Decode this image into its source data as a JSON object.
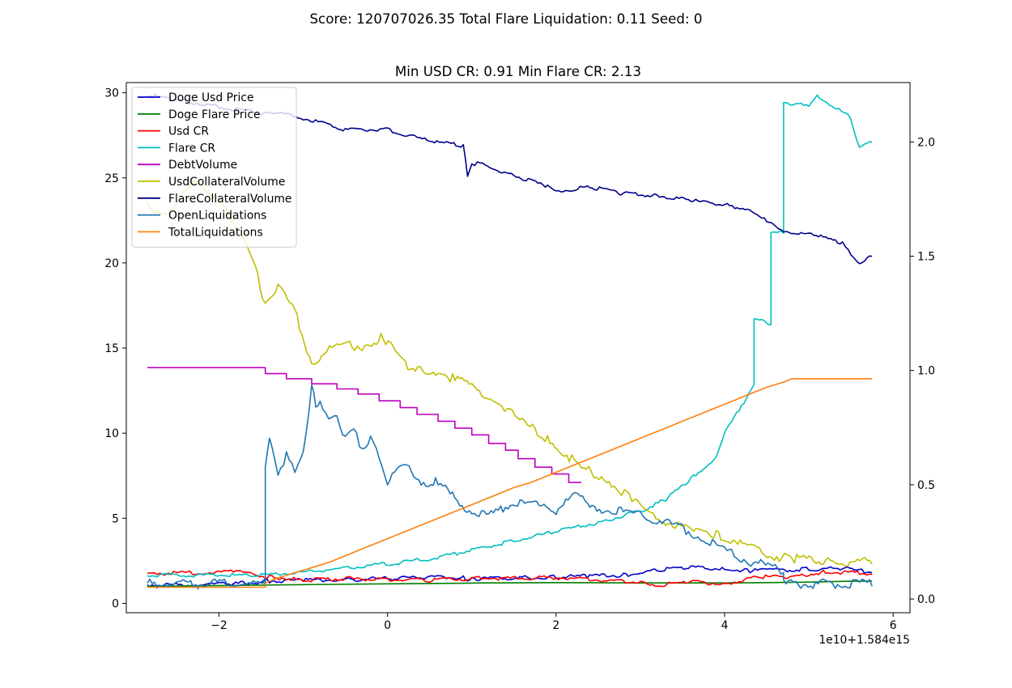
{
  "figure": {
    "suptitle": "Score: 120707026.35 Total Flare Liquidation: 0.11 Seed: 0"
  },
  "chart_data": {
    "type": "line",
    "title": "Min USD CR: 0.91 Min Flare CR: 2.13",
    "xlabel": "",
    "ylabel": "",
    "x_offset_text": "1e10+1.584e15",
    "xlim": [
      -3.1,
      6.2
    ],
    "ylim_left": [
      -0.55,
      30.6
    ],
    "ylim_right": [
      -0.06,
      2.26
    ],
    "x_ticks": [
      -2,
      0,
      2,
      4,
      6
    ],
    "x_tick_labels": [
      "−2",
      "0",
      "2",
      "4",
      "6"
    ],
    "y_ticks_left": [
      0,
      5,
      10,
      15,
      20,
      25,
      30
    ],
    "y_tick_labels_left": [
      "0",
      "5",
      "10",
      "15",
      "20",
      "25",
      "30"
    ],
    "y_ticks_right": [
      0.0,
      0.5,
      1.0,
      1.5,
      2.0
    ],
    "y_tick_labels_right": [
      "0.0",
      "0.5",
      "1.0",
      "1.5",
      "2.0"
    ],
    "grid": false,
    "legend_position": "top-left",
    "series": [
      {
        "name": "Doge Usd Price",
        "color": "#0000cc",
        "axis": "left",
        "x": [
          -2.85,
          -2.2,
          -1.8,
          -1.4,
          -1.0,
          -0.5,
          0.0,
          0.5,
          0.9,
          0.95,
          1.0,
          1.05,
          1.1,
          1.6,
          2.0,
          2.4,
          2.8,
          3.2,
          3.6,
          4.0,
          4.3,
          4.6,
          5.0,
          5.4,
          5.6,
          5.75
        ],
        "values": [
          1.03,
          1.05,
          1.1,
          1.25,
          1.3,
          1.35,
          1.4,
          1.5,
          1.45,
          1.35,
          1.4,
          1.38,
          1.4,
          1.45,
          1.5,
          1.55,
          1.6,
          1.9,
          2.05,
          2.0,
          1.85,
          1.9,
          1.95,
          2.0,
          1.85,
          1.8
        ]
      },
      {
        "name": "Doge Flare Price",
        "color": "#008000",
        "axis": "left",
        "x": [
          -2.85,
          -2.0,
          -1.0,
          0.0,
          0.9,
          1.1,
          2.0,
          3.0,
          4.0,
          4.5,
          5.0,
          5.5,
          5.75
        ],
        "values": [
          1.0,
          1.05,
          1.1,
          1.15,
          1.18,
          1.2,
          1.22,
          1.2,
          1.2,
          1.22,
          1.25,
          1.3,
          1.3
        ]
      },
      {
        "name": "Usd CR",
        "color": "#ff0000",
        "axis": "left",
        "x": [
          -2.85,
          -2.2,
          -1.8,
          -1.4,
          -1.0,
          -0.5,
          0.0,
          0.5,
          1.0,
          2.0,
          2.6,
          3.0,
          3.2,
          3.6,
          4.0,
          4.4,
          4.8,
          5.2,
          5.75
        ],
        "values": [
          1.7,
          1.75,
          1.8,
          1.5,
          1.3,
          1.4,
          1.35,
          1.3,
          1.4,
          1.45,
          1.3,
          1.2,
          1.0,
          1.2,
          1.1,
          1.5,
          1.5,
          1.8,
          1.7
        ]
      },
      {
        "name": "Flare CR",
        "color": "#00bfbf",
        "axis": "right",
        "x": [
          -2.85,
          -1.5,
          -0.5,
          0.5,
          1.0,
          1.5,
          2.0,
          2.5,
          3.0,
          3.3,
          3.6,
          3.9,
          4.0,
          4.2,
          4.35,
          4.35,
          4.55,
          4.55,
          4.7,
          4.7,
          5.0,
          5.1,
          5.5,
          5.6,
          5.75
        ],
        "values": [
          0.1,
          0.1,
          0.13,
          0.17,
          0.21,
          0.25,
          0.29,
          0.33,
          0.38,
          0.43,
          0.52,
          0.62,
          0.72,
          0.84,
          0.94,
          1.22,
          1.2,
          1.6,
          1.6,
          2.17,
          2.15,
          2.2,
          2.1,
          1.97,
          2.0
        ]
      },
      {
        "name": "DebtVolume",
        "color": "#bf00bf",
        "axis": "left",
        "x": [
          -2.85,
          -1.45,
          -1.45,
          -1.2,
          -1.2,
          -0.9,
          -0.9,
          -0.6,
          -0.6,
          -0.35,
          -0.35,
          -0.1,
          -0.1,
          0.15,
          0.15,
          0.35,
          0.35,
          0.6,
          0.6,
          0.8,
          0.8,
          1.0,
          1.0,
          1.2,
          1.2,
          1.4,
          1.4,
          1.55,
          1.55,
          1.75,
          1.75,
          1.95,
          1.95,
          2.15,
          2.15,
          2.3
        ],
        "values": [
          13.85,
          13.85,
          13.5,
          13.5,
          13.2,
          13.2,
          12.9,
          12.9,
          12.6,
          12.6,
          12.3,
          12.3,
          11.9,
          11.9,
          11.5,
          11.5,
          11.1,
          11.1,
          10.7,
          10.7,
          10.3,
          10.3,
          9.9,
          9.9,
          9.4,
          9.4,
          9.0,
          9.0,
          8.5,
          8.5,
          8.0,
          8.0,
          7.6,
          7.6,
          7.1,
          7.1
        ]
      },
      {
        "name": "UsdCollateralVolume",
        "color": "#bfbf00",
        "axis": "left",
        "x": [
          -2.85,
          -2.6,
          -2.3,
          -2.0,
          -1.8,
          -1.6,
          -1.45,
          -1.3,
          -1.1,
          -0.9,
          -0.6,
          -0.3,
          -0.05,
          0.3,
          0.6,
          0.8,
          1.0,
          1.3,
          1.6,
          1.9,
          2.1,
          2.3,
          2.6,
          2.9,
          3.1,
          3.3,
          3.6,
          3.9,
          4.1,
          4.3,
          4.5,
          4.8,
          5.2,
          5.75
        ],
        "values": [
          23.2,
          22.8,
          24.5,
          23.8,
          22.0,
          20.0,
          17.5,
          18.5,
          17.0,
          14.0,
          15.0,
          15.0,
          15.5,
          13.5,
          13.5,
          13.0,
          12.6,
          11.8,
          10.5,
          9.5,
          8.7,
          7.8,
          7.2,
          6.0,
          5.2,
          4.7,
          4.1,
          3.9,
          3.6,
          3.2,
          2.7,
          2.5,
          2.3,
          2.3
        ]
      },
      {
        "name": "FlareCollateralVolume",
        "color": "#00008b",
        "axis": "right",
        "x": [
          -2.85,
          -2.5,
          -2.0,
          -1.5,
          -1.2,
          -1.0,
          -0.5,
          0.0,
          0.5,
          0.9,
          0.95,
          1.0,
          1.1,
          1.5,
          1.9,
          2.0,
          2.4,
          2.8,
          3.2,
          3.6,
          4.0,
          4.3,
          4.5,
          4.7,
          5.0,
          5.4,
          5.5,
          5.6,
          5.75
        ],
        "values": [
          2.2,
          2.18,
          2.15,
          2.12,
          2.12,
          2.1,
          2.05,
          2.05,
          2.0,
          1.98,
          1.85,
          1.9,
          1.9,
          1.85,
          1.8,
          1.78,
          1.8,
          1.77,
          1.76,
          1.74,
          1.72,
          1.7,
          1.65,
          1.6,
          1.6,
          1.55,
          1.5,
          1.47,
          1.5
        ]
      },
      {
        "name": "OpenLiquidations",
        "color": "#1f77b4",
        "axis": "left",
        "x": [
          -2.85,
          -1.45,
          -1.45,
          -1.4,
          -1.3,
          -1.2,
          -1.1,
          -1.0,
          -0.9,
          -0.85,
          -0.8,
          -0.7,
          -0.6,
          -0.5,
          -0.4,
          -0.3,
          -0.2,
          -0.1,
          0.0,
          0.2,
          0.4,
          0.6,
          0.8,
          1.0,
          1.2,
          1.4,
          1.6,
          1.8,
          2.0,
          2.2,
          2.4,
          2.6,
          2.8,
          3.0,
          3.2,
          3.4,
          3.6,
          3.8,
          4.0,
          4.2,
          4.4,
          4.6,
          4.7,
          4.7,
          5.75
        ],
        "values": [
          1.0,
          1.0,
          8.0,
          9.5,
          7.5,
          8.5,
          7.5,
          9.0,
          12.5,
          11.5,
          12.0,
          10.5,
          11.0,
          9.5,
          10.0,
          9.0,
          9.5,
          8.5,
          7.0,
          8.0,
          7.0,
          7.0,
          6.0,
          5.2,
          5.0,
          5.5,
          6.0,
          5.5,
          5.3,
          6.5,
          5.5,
          5.3,
          5.2,
          5.0,
          4.8,
          4.5,
          4.0,
          3.5,
          3.0,
          2.5,
          2.2,
          1.9,
          1.8,
          1.0,
          1.0
        ]
      },
      {
        "name": "TotalLiquidations",
        "color": "#ff7f0e",
        "axis": "left",
        "x": [
          -2.85,
          -1.45,
          -1.45,
          -1.3,
          -1.1,
          -0.9,
          -0.7,
          -0.5,
          -0.3,
          -0.1,
          0.1,
          0.3,
          0.5,
          0.7,
          0.9,
          1.1,
          1.3,
          1.5,
          1.7,
          1.9,
          2.1,
          2.3,
          2.5,
          2.7,
          2.9,
          3.1,
          3.3,
          3.5,
          3.7,
          3.9,
          4.1,
          4.3,
          4.5,
          4.7,
          4.8,
          5.75
        ],
        "values": [
          0.95,
          0.95,
          1.2,
          1.5,
          1.8,
          2.1,
          2.4,
          2.8,
          3.2,
          3.6,
          4.0,
          4.4,
          4.8,
          5.2,
          5.6,
          6.0,
          6.4,
          6.8,
          7.1,
          7.5,
          7.9,
          8.3,
          8.7,
          9.1,
          9.5,
          9.9,
          10.3,
          10.7,
          11.1,
          11.5,
          11.9,
          12.3,
          12.7,
          13.0,
          13.2,
          13.2
        ]
      }
    ]
  }
}
